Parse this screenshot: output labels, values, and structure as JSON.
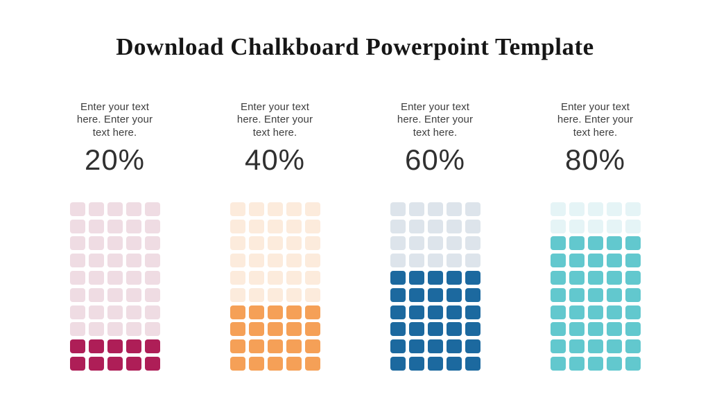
{
  "title": "Download Chalkboard Powerpoint Template",
  "columns": [
    {
      "description": "Enter your text here. Enter your text here.",
      "percent": "20%",
      "filled_rows": 2,
      "fill_color": "#AE1E57",
      "empty_color": "#EFDCE3"
    },
    {
      "description": "Enter your text here. Enter your text here.",
      "percent": "40%",
      "filled_rows": 4,
      "fill_color": "#F5A057",
      "empty_color": "#FCEBDC"
    },
    {
      "description": "Enter your text here. Enter your text here.",
      "percent": "60%",
      "filled_rows": 6,
      "fill_color": "#1C699F",
      "empty_color": "#DDE4EB"
    },
    {
      "description": "Enter your text here. Enter your text here.",
      "percent": "80%",
      "filled_rows": 8,
      "fill_color": "#62C8CE",
      "empty_color": "#E5F4F6"
    }
  ],
  "chart_data": {
    "type": "bar",
    "variant": "waffle-grid",
    "title": "Download Chalkboard Powerpoint Template",
    "categories": [
      "20%",
      "40%",
      "60%",
      "80%"
    ],
    "values": [
      20,
      40,
      60,
      80
    ],
    "unit": "percent",
    "grid": {
      "rows": 10,
      "cols": 5,
      "cells_per_chart": 50,
      "filled_cells": [
        10,
        20,
        30,
        40
      ]
    },
    "fill_colors": [
      "#AE1E57",
      "#F5A057",
      "#1C699F",
      "#62C8CE"
    ],
    "empty_colors": [
      "#EFDCE3",
      "#FCEBDC",
      "#DDE4EB",
      "#E5F4F6"
    ],
    "annotations": [
      "Enter your text here. Enter your text here.",
      "Enter your text here. Enter your text here.",
      "Enter your text here. Enter your text here.",
      "Enter your text here. Enter your text here."
    ],
    "legend": false,
    "axes": false,
    "background": "#FFFFFF"
  }
}
